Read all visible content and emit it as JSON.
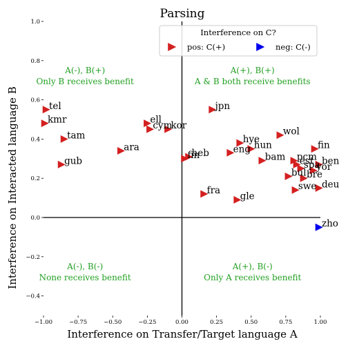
{
  "chart_data": {
    "type": "scatter",
    "title": "Parsing",
    "xlabel": "Interference on Transfer/Target language A",
    "ylabel": "Interference on Interacted language B",
    "xlim": [
      -1.0,
      1.0
    ],
    "ylim": [
      -0.5,
      1.0
    ],
    "x_ticks": [
      -1.0,
      -0.75,
      -0.5,
      -0.25,
      0.0,
      0.25,
      0.5,
      0.75,
      1.0
    ],
    "x_tick_labels": [
      "−1.00",
      "−0.75",
      "−0.50",
      "−0.25",
      "0.00",
      "0.25",
      "0.50",
      "0.75",
      "1.00"
    ],
    "y_ticks": [
      -0.4,
      -0.2,
      0.0,
      0.2,
      0.4,
      0.6,
      0.8,
      1.0
    ],
    "y_tick_labels": [
      "−0.4",
      "−0.2",
      "0.0",
      "0.2",
      "0.4",
      "0.6",
      "0.8",
      "1.0"
    ],
    "grid": false,
    "legend": {
      "title": "Interference on C?",
      "placement": "top-right",
      "entries": [
        {
          "label": "pos: C(+)",
          "color": "#d42020"
        },
        {
          "label": "neg: C(-)",
          "color": "#0000ee"
        }
      ]
    },
    "annotations": [
      {
        "line1": "A(-), B(+)",
        "line2": "Only B receives benefit",
        "x": -0.7,
        "y": 0.7
      },
      {
        "line1": "A(+), B(+)",
        "line2": "A & B both receive benefits",
        "x": 0.51,
        "y": 0.7
      },
      {
        "line1": "A(-), B(-)",
        "line2": "None receives benefit",
        "x": -0.7,
        "y": -0.3
      },
      {
        "line1": "A(+), B(-)",
        "line2": "Only A receives benefit",
        "x": 0.51,
        "y": -0.3
      }
    ],
    "annotation_color": "#22a022",
    "points": [
      {
        "label": "tel",
        "x": -0.98,
        "y": 0.55,
        "sign": "pos"
      },
      {
        "label": "kmr",
        "x": -0.99,
        "y": 0.48,
        "sign": "pos"
      },
      {
        "label": "tam",
        "x": -0.85,
        "y": 0.4,
        "sign": "pos"
      },
      {
        "label": "gub",
        "x": -0.87,
        "y": 0.27,
        "sign": "pos"
      },
      {
        "label": "ara",
        "x": -0.44,
        "y": 0.34,
        "sign": "pos"
      },
      {
        "label": "ell",
        "x": -0.25,
        "y": 0.48,
        "sign": "pos"
      },
      {
        "label": "cym",
        "x": -0.23,
        "y": 0.45,
        "sign": "pos"
      },
      {
        "label": "kor",
        "x": -0.1,
        "y": 0.45,
        "sign": "pos"
      },
      {
        "label": "heb",
        "x": 0.05,
        "y": 0.31,
        "sign": "pos"
      },
      {
        "label": "fin",
        "x": 0.02,
        "y": 0.3,
        "sign": "pos"
      },
      {
        "label": "jpn",
        "x": 0.22,
        "y": 0.55,
        "sign": "pos"
      },
      {
        "label": "hye",
        "x": 0.42,
        "y": 0.38,
        "sign": "pos"
      },
      {
        "label": "eng",
        "x": 0.35,
        "y": 0.33,
        "sign": "pos"
      },
      {
        "label": "hun",
        "x": 0.5,
        "y": 0.35,
        "sign": "pos"
      },
      {
        "label": "wol",
        "x": 0.71,
        "y": 0.42,
        "sign": "pos"
      },
      {
        "label": "bam",
        "x": 0.58,
        "y": 0.29,
        "sign": "pos"
      },
      {
        "label": "pcm",
        "x": 0.81,
        "y": 0.29,
        "sign": "pos"
      },
      {
        "label": "est",
        "x": 0.83,
        "y": 0.27,
        "sign": "pos"
      },
      {
        "label": "spa",
        "x": 0.86,
        "y": 0.25,
        "sign": "pos"
      },
      {
        "label": "ben",
        "x": 0.99,
        "y": 0.27,
        "sign": "pos"
      },
      {
        "label": "yor",
        "x": 0.95,
        "y": 0.24,
        "sign": "pos"
      },
      {
        "label": "bul",
        "x": 0.77,
        "y": 0.21,
        "sign": "pos"
      },
      {
        "label": "bre",
        "x": 0.88,
        "y": 0.2,
        "sign": "pos"
      },
      {
        "label": "fin",
        "x": 0.96,
        "y": 0.35,
        "sign": "pos"
      },
      {
        "label": "swe",
        "x": 0.82,
        "y": 0.14,
        "sign": "pos"
      },
      {
        "label": "deu",
        "x": 0.99,
        "y": 0.15,
        "sign": "pos"
      },
      {
        "label": "fra",
        "x": 0.16,
        "y": 0.12,
        "sign": "pos"
      },
      {
        "label": "gle",
        "x": 0.4,
        "y": 0.09,
        "sign": "pos"
      },
      {
        "label": "zho",
        "x": 0.99,
        "y": -0.05,
        "sign": "neg"
      }
    ]
  }
}
